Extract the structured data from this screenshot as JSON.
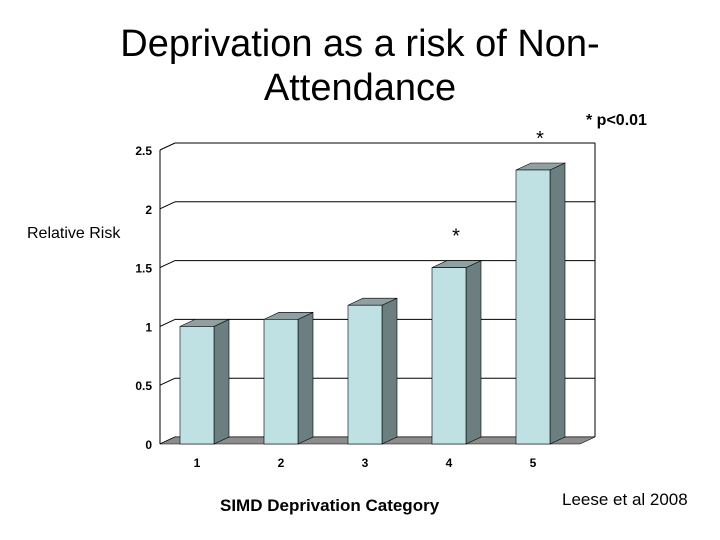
{
  "slide": {
    "title": "Deprivation as a risk of Non-Attendance",
    "significance_note": "* p<0.01",
    "citation": "Leese et al 2008"
  },
  "chart_data": {
    "type": "bar",
    "title": "Deprivation as a risk of Non-Attendance",
    "xlabel": "SIMD Deprivation Category",
    "ylabel": "Relative Risk",
    "categories": [
      "1",
      "2",
      "3",
      "4",
      "5"
    ],
    "values": [
      1.0,
      1.06,
      1.18,
      1.5,
      2.33
    ],
    "significant": [
      false,
      false,
      false,
      true,
      true
    ],
    "significance_marker": "*",
    "ylim": [
      0,
      2.5
    ],
    "yticks": [
      0,
      0.5,
      1,
      1.5,
      2,
      2.5
    ],
    "ytick_labels": [
      "0",
      "0.5",
      "1",
      "1.5",
      "2",
      "2.5"
    ],
    "grid": true,
    "colors": {
      "bar_front": "#bfe1e3",
      "bar_side": "#6c7f80",
      "bar_top": "#8fa0a2",
      "floor": "#8c8c8c",
      "grid": "#000000"
    }
  }
}
